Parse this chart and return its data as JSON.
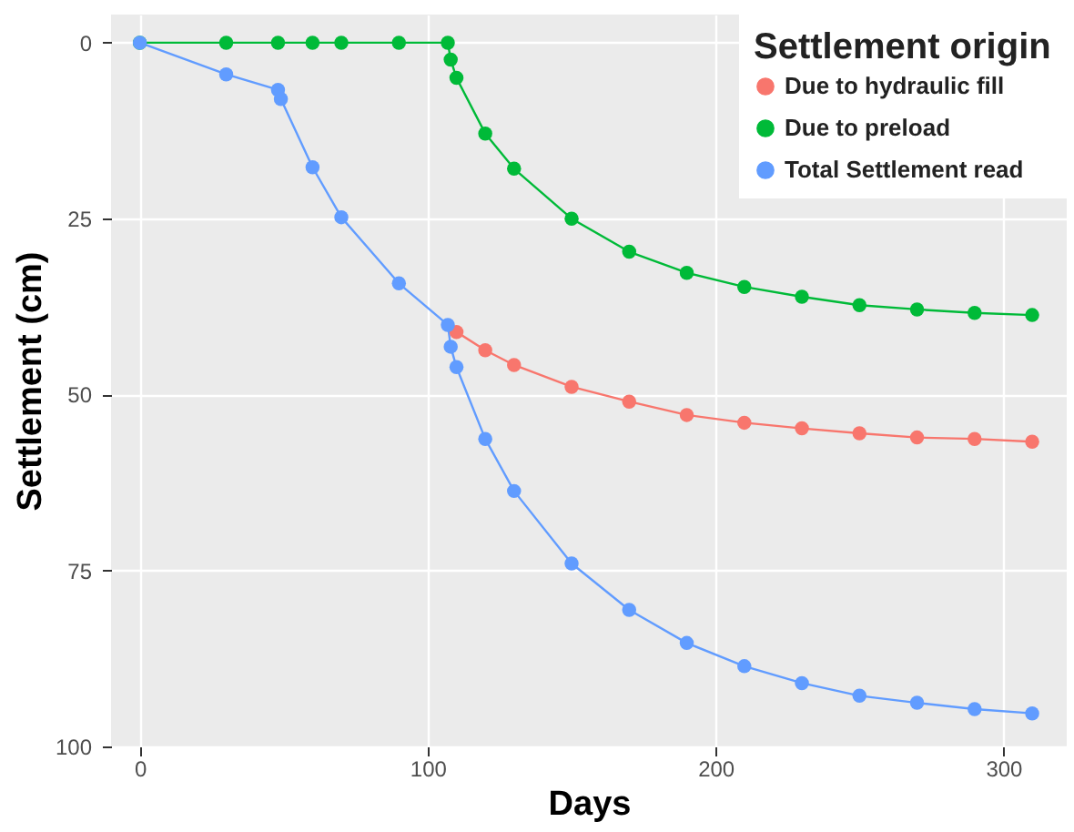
{
  "chart_data": {
    "type": "line",
    "xlabel": "Days",
    "ylabel": "Settlement (cm)",
    "legend_title": "Settlement origin",
    "series": [
      {
        "name": "Due to hydraulic fill",
        "color": "#f8766d",
        "x": [
          110,
          120,
          130,
          150,
          170,
          190,
          210,
          230,
          250,
          270,
          290,
          310
        ],
        "values": [
          41.1,
          43.7,
          45.8,
          48.9,
          51.0,
          52.9,
          54.0,
          54.8,
          55.5,
          56.1,
          56.3,
          56.7
        ]
      },
      {
        "name": "Due to preload",
        "color": "#00ba38",
        "x": [
          0,
          30,
          48,
          60,
          70,
          90,
          107,
          108,
          110,
          120,
          130,
          150,
          170,
          190,
          210,
          230,
          250,
          270,
          290,
          310
        ],
        "values": [
          0,
          0,
          0,
          0,
          0,
          0,
          0,
          2.4,
          5.0,
          12.9,
          17.9,
          25.0,
          29.7,
          32.7,
          34.7,
          36.1,
          37.3,
          37.9,
          38.4,
          38.7
        ]
      },
      {
        "name": "Total Settlement read",
        "color": "#619cff",
        "x": [
          0,
          30,
          48,
          49,
          60,
          70,
          90,
          107,
          108,
          110,
          120,
          130,
          150,
          170,
          190,
          210,
          230,
          250,
          270,
          290,
          310
        ],
        "values": [
          0,
          4.5,
          6.7,
          8.0,
          17.7,
          24.8,
          34.2,
          40.1,
          43.2,
          46.1,
          56.3,
          63.7,
          74.0,
          80.6,
          85.3,
          88.6,
          91.0,
          92.8,
          93.8,
          94.7,
          95.3
        ]
      }
    ],
    "xlim": [
      -10,
      322
    ],
    "xticks": [
      0,
      100,
      200,
      300
    ],
    "ylim": [
      100,
      -4
    ],
    "yticks": [
      0,
      25,
      50,
      75,
      100
    ],
    "grid": true,
    "legend": "top right",
    "marker": "circle",
    "line_style": "solid"
  }
}
